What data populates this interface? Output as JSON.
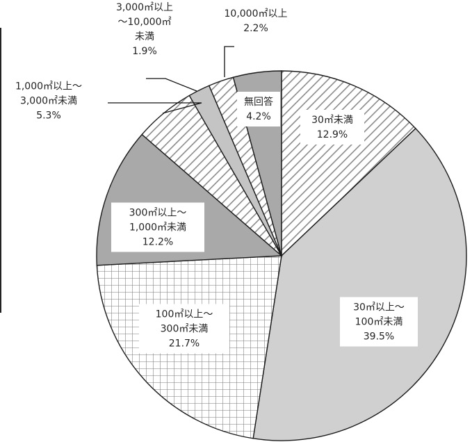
{
  "chart_data": {
    "type": "pie",
    "start": "12 o'clock",
    "direction": "clockwise",
    "slices": [
      {
        "label": [
          "30㎡未満"
        ],
        "value": 12.9,
        "value_label": "12.9%",
        "pattern": "diag-hatch",
        "fill": "#ffffff",
        "stroke": "#8a8a8a"
      },
      {
        "label": [
          "30㎡以上～",
          "100㎡未満"
        ],
        "value": 39.5,
        "value_label": "39.5%",
        "pattern": "solid",
        "fill": "#d0d0d0"
      },
      {
        "label": [
          "100㎡以上～",
          "300㎡未満"
        ],
        "value": 21.7,
        "value_label": "21.7%",
        "pattern": "grid",
        "fill": "#ffffff",
        "stroke": "#7a7a7a"
      },
      {
        "label": [
          "300㎡以上～",
          "1,000㎡未満"
        ],
        "value": 12.2,
        "value_label": "12.2%",
        "pattern": "solid",
        "fill": "#a9a9a9"
      },
      {
        "label": [
          "1,000㎡以上～",
          "3,000㎡未満"
        ],
        "value": 5.3,
        "value_label": "5.3%",
        "pattern": "diag-hatch",
        "fill": "#ffffff",
        "stroke": "#8a8a8a"
      },
      {
        "label": [
          "3,000㎡以上",
          "～10,000㎡",
          "未満"
        ],
        "value": 1.9,
        "value_label": "1.9%",
        "pattern": "solid",
        "fill": "#c4c4c4"
      },
      {
        "label": [
          "10,000㎡以上"
        ],
        "value": 2.2,
        "value_label": "2.2%",
        "pattern": "diag-hatch",
        "fill": "#ffffff",
        "stroke": "#8a8a8a"
      },
      {
        "label": [
          "無回答"
        ],
        "value": 4.2,
        "value_label": "4.2%",
        "pattern": "solid",
        "fill": "#a9a9a9"
      }
    ]
  }
}
